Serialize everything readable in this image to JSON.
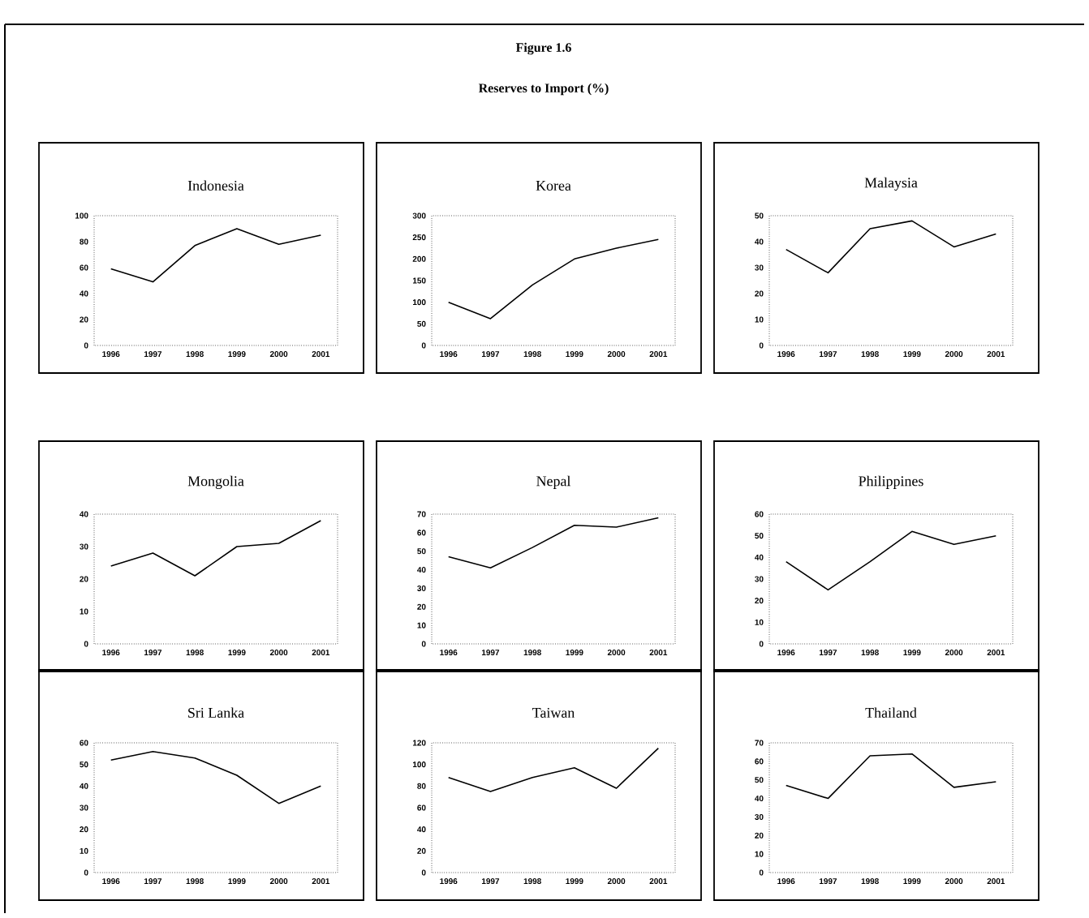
{
  "chart_data": [
    {
      "type": "other",
      "title": "Figure 1.6",
      "subtitle": "Reserves to Import (%)"
    },
    {
      "type": "line",
      "title": "Indonesia",
      "categories": [
        "1996",
        "1997",
        "1998",
        "1999",
        "2000",
        "2001"
      ],
      "values": [
        59,
        49,
        77,
        90,
        78,
        85
      ],
      "color": "#000000",
      "ylim": [
        0,
        100
      ],
      "yticks": [
        0,
        20,
        40,
        60,
        80,
        100
      ],
      "grid": false
    },
    {
      "type": "line",
      "title": "Korea",
      "categories": [
        "1996",
        "1997",
        "1998",
        "1999",
        "2000",
        "2001"
      ],
      "values": [
        100,
        62,
        140,
        200,
        225,
        245
      ],
      "color": "#000000",
      "ylim": [
        0,
        300
      ],
      "yticks": [
        0,
        50,
        100,
        150,
        200,
        250,
        300
      ],
      "grid": false
    },
    {
      "type": "line",
      "title": "Malaysia",
      "categories": [
        "1996",
        "1997",
        "1998",
        "1999",
        "2000",
        "2001"
      ],
      "values": [
        37,
        28,
        45,
        48,
        38,
        43
      ],
      "color": "#000000",
      "ylim": [
        0,
        50
      ],
      "yticks": [
        0,
        10,
        20,
        30,
        40,
        50
      ],
      "grid": false
    },
    {
      "type": "line",
      "title": "Mongolia",
      "categories": [
        "1996",
        "1997",
        "1998",
        "1999",
        "2000",
        "2001"
      ],
      "values": [
        24,
        28,
        21,
        30,
        31,
        38
      ],
      "color": "#000000",
      "ylim": [
        0,
        40
      ],
      "yticks": [
        0,
        10,
        20,
        30,
        40
      ],
      "grid": false
    },
    {
      "type": "line",
      "title": "Nepal",
      "categories": [
        "1996",
        "1997",
        "1998",
        "1999",
        "2000",
        "2001"
      ],
      "values": [
        47,
        41,
        52,
        64,
        63,
        68
      ],
      "color": "#000000",
      "ylim": [
        0,
        70
      ],
      "yticks": [
        0,
        10,
        20,
        30,
        40,
        50,
        60,
        70
      ],
      "grid": false
    },
    {
      "type": "line",
      "title": "Philippines",
      "categories": [
        "1996",
        "1997",
        "1998",
        "1999",
        "2000",
        "2001"
      ],
      "values": [
        38,
        25,
        38,
        52,
        46,
        50
      ],
      "color": "#000000",
      "ylim": [
        0,
        60
      ],
      "yticks": [
        0,
        10,
        20,
        30,
        40,
        50,
        60
      ],
      "grid": false
    },
    {
      "type": "line",
      "title": "Sri Lanka",
      "categories": [
        "1996",
        "1997",
        "1998",
        "1999",
        "2000",
        "2001"
      ],
      "values": [
        52,
        56,
        53,
        45,
        32,
        40
      ],
      "color": "#000000",
      "ylim": [
        0,
        60
      ],
      "yticks": [
        0,
        10,
        20,
        30,
        40,
        50,
        60
      ],
      "grid": false
    },
    {
      "type": "line",
      "title": "Taiwan",
      "categories": [
        "1996",
        "1997",
        "1998",
        "1999",
        "2000",
        "2001"
      ],
      "values": [
        88,
        75,
        88,
        97,
        78,
        115
      ],
      "color": "#000000",
      "ylim": [
        0,
        120
      ],
      "yticks": [
        0,
        20,
        40,
        60,
        80,
        100,
        120
      ],
      "grid": false
    },
    {
      "type": "line",
      "title": "Thailand",
      "categories": [
        "1996",
        "1997",
        "1998",
        "1999",
        "2000",
        "2001"
      ],
      "values": [
        47,
        40,
        63,
        64,
        46,
        49
      ],
      "color": "#000000",
      "ylim": [
        0,
        70
      ],
      "yticks": [
        0,
        10,
        20,
        30,
        40,
        50,
        60,
        70
      ],
      "grid": false
    }
  ]
}
